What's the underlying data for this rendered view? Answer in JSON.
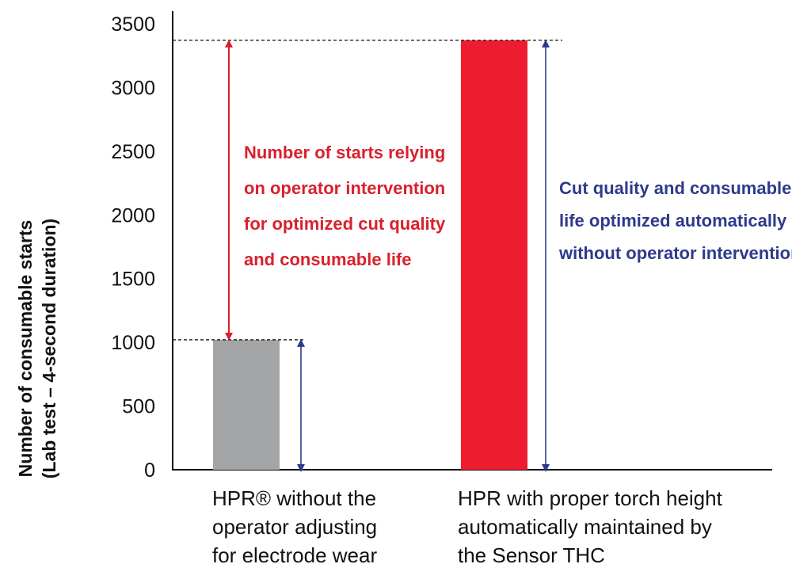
{
  "chart_data": {
    "type": "bar",
    "categories": [
      [
        "HPR® without the",
        "operator adjusting",
        "for electrode wear"
      ],
      [
        "HPR with proper torch height",
        "automatically maintained by",
        "the Sensor THC"
      ]
    ],
    "values": [
      1020,
      3370
    ],
    "bar_colors": [
      "#a3a5a7",
      "#ed1c2e"
    ],
    "ylabel": [
      "Number of consumable starts",
      "(Lab test – 4-second duration)"
    ],
    "ylim": [
      0,
      3500
    ],
    "yticks": [
      "0",
      "500",
      "1000",
      "1500",
      "2000",
      "2500",
      "3000",
      "3500"
    ],
    "grid": false,
    "annotations": [
      {
        "lines": [
          "Number of starts relying",
          "on operator intervention",
          "for optimized cut quality",
          "and consumable life"
        ],
        "color": "#d9202e"
      },
      {
        "lines": [
          "Cut quality and consumable",
          "life optimized automatically",
          "without operator intervention"
        ],
        "color": "#2e3a8c"
      }
    ]
  }
}
